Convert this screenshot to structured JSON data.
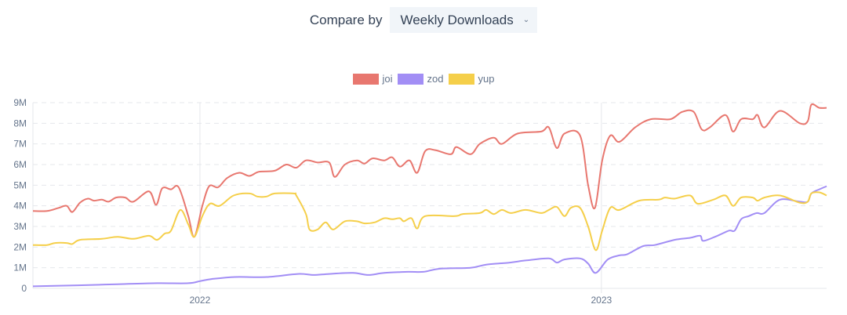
{
  "header": {
    "compare_label": "Compare by",
    "select_value": "Weekly Downloads",
    "chevron_icon": "chevron-down-icon"
  },
  "chart_data": {
    "type": "line",
    "title": "",
    "xlabel": "",
    "ylabel": "",
    "xlim": [
      2021.584,
      2023.561
    ],
    "ylim": [
      0,
      9
    ],
    "y_unit": "millions of weekly downloads",
    "y_ticks": [
      0,
      1,
      2,
      3,
      4,
      5,
      6,
      7,
      8,
      9
    ],
    "y_tick_labels": [
      "0",
      "1M",
      "2M",
      "3M",
      "4M",
      "5M",
      "6M",
      "7M",
      "8M",
      "9M"
    ],
    "x_ticks": [
      2022,
      2023
    ],
    "x_tick_labels": [
      "2022",
      "2023"
    ],
    "grid": true,
    "legend_position": "top-center",
    "series": [
      {
        "name": "joi",
        "color": "#e8776f",
        "points": [
          [
            2021.584,
            3.75
          ],
          [
            2021.619,
            3.75
          ],
          [
            2021.648,
            3.9
          ],
          [
            2021.668,
            4.0
          ],
          [
            2021.682,
            3.7
          ],
          [
            2021.701,
            4.15
          ],
          [
            2021.721,
            4.35
          ],
          [
            2021.736,
            4.25
          ],
          [
            2021.756,
            4.3
          ],
          [
            2021.772,
            4.2
          ],
          [
            2021.791,
            4.4
          ],
          [
            2021.814,
            4.4
          ],
          [
            2021.834,
            4.2
          ],
          [
            2021.873,
            4.7
          ],
          [
            2021.891,
            4.05
          ],
          [
            2021.906,
            4.85
          ],
          [
            2021.928,
            4.8
          ],
          [
            2021.947,
            4.9
          ],
          [
            2021.971,
            3.5
          ],
          [
            2021.986,
            2.5
          ],
          [
            2022.006,
            4.0
          ],
          [
            2022.023,
            4.95
          ],
          [
            2022.045,
            4.9
          ],
          [
            2022.068,
            5.35
          ],
          [
            2022.098,
            5.6
          ],
          [
            2022.123,
            5.45
          ],
          [
            2022.147,
            5.65
          ],
          [
            2022.186,
            5.7
          ],
          [
            2022.215,
            6.0
          ],
          [
            2022.24,
            5.85
          ],
          [
            2022.264,
            6.2
          ],
          [
            2022.293,
            6.1
          ],
          [
            2022.322,
            6.1
          ],
          [
            2022.336,
            5.4
          ],
          [
            2022.361,
            6.0
          ],
          [
            2022.391,
            6.2
          ],
          [
            2022.41,
            6.05
          ],
          [
            2022.43,
            6.3
          ],
          [
            2022.459,
            6.2
          ],
          [
            2022.479,
            6.35
          ],
          [
            2022.498,
            5.9
          ],
          [
            2022.522,
            6.2
          ],
          [
            2022.541,
            5.6
          ],
          [
            2022.561,
            6.65
          ],
          [
            2022.586,
            6.7
          ],
          [
            2022.625,
            6.5
          ],
          [
            2022.639,
            6.85
          ],
          [
            2022.674,
            6.5
          ],
          [
            2022.697,
            7.0
          ],
          [
            2022.732,
            7.3
          ],
          [
            2022.752,
            7.0
          ],
          [
            2022.791,
            7.5
          ],
          [
            2022.85,
            7.6
          ],
          [
            2022.869,
            7.8
          ],
          [
            2022.889,
            6.8
          ],
          [
            2022.908,
            7.5
          ],
          [
            2022.947,
            7.4
          ],
          [
            2022.967,
            5.0
          ],
          [
            2022.984,
            3.9
          ],
          [
            2023.002,
            6.2
          ],
          [
            2023.022,
            7.4
          ],
          [
            2023.045,
            7.1
          ],
          [
            2023.084,
            7.8
          ],
          [
            2023.123,
            8.2
          ],
          [
            2023.172,
            8.2
          ],
          [
            2023.201,
            8.55
          ],
          [
            2023.23,
            8.55
          ],
          [
            2023.25,
            7.7
          ],
          [
            2023.27,
            7.8
          ],
          [
            2023.309,
            8.4
          ],
          [
            2023.328,
            7.6
          ],
          [
            2023.348,
            8.2
          ],
          [
            2023.377,
            8.2
          ],
          [
            2023.389,
            8.4
          ],
          [
            2023.406,
            7.8
          ],
          [
            2023.445,
            8.6
          ],
          [
            2023.494,
            8.0
          ],
          [
            2023.514,
            8.1
          ],
          [
            2023.523,
            8.9
          ],
          [
            2023.543,
            8.75
          ],
          [
            2023.561,
            8.75
          ]
        ]
      },
      {
        "name": "zod",
        "color": "#a28ef5",
        "points": [
          [
            2021.584,
            0.1
          ],
          [
            2021.697,
            0.15
          ],
          [
            2021.795,
            0.2
          ],
          [
            2021.893,
            0.25
          ],
          [
            2021.971,
            0.25
          ],
          [
            2022.0,
            0.35
          ],
          [
            2022.029,
            0.45
          ],
          [
            2022.088,
            0.55
          ],
          [
            2022.166,
            0.55
          ],
          [
            2022.244,
            0.7
          ],
          [
            2022.283,
            0.65
          ],
          [
            2022.322,
            0.7
          ],
          [
            2022.381,
            0.75
          ],
          [
            2022.42,
            0.65
          ],
          [
            2022.459,
            0.75
          ],
          [
            2022.518,
            0.8
          ],
          [
            2022.557,
            0.8
          ],
          [
            2022.596,
            0.95
          ],
          [
            2022.674,
            1.0
          ],
          [
            2022.713,
            1.15
          ],
          [
            2022.772,
            1.25
          ],
          [
            2022.811,
            1.35
          ],
          [
            2022.869,
            1.45
          ],
          [
            2022.889,
            1.25
          ],
          [
            2022.908,
            1.4
          ],
          [
            2022.947,
            1.45
          ],
          [
            2022.967,
            1.2
          ],
          [
            2022.986,
            0.75
          ],
          [
            2023.016,
            1.4
          ],
          [
            2023.045,
            1.6
          ],
          [
            2023.064,
            1.65
          ],
          [
            2023.104,
            2.05
          ],
          [
            2023.133,
            2.1
          ],
          [
            2023.182,
            2.35
          ],
          [
            2023.221,
            2.45
          ],
          [
            2023.246,
            2.55
          ],
          [
            2023.254,
            2.3
          ],
          [
            2023.289,
            2.55
          ],
          [
            2023.318,
            2.8
          ],
          [
            2023.332,
            2.8
          ],
          [
            2023.348,
            3.35
          ],
          [
            2023.367,
            3.5
          ],
          [
            2023.387,
            3.65
          ],
          [
            2023.406,
            3.65
          ],
          [
            2023.445,
            4.3
          ],
          [
            2023.494,
            4.2
          ],
          [
            2023.514,
            4.2
          ],
          [
            2023.523,
            4.6
          ],
          [
            2023.543,
            4.8
          ],
          [
            2023.561,
            4.95
          ]
        ]
      },
      {
        "name": "yup",
        "color": "#f5cf4a",
        "points": [
          [
            2021.584,
            2.1
          ],
          [
            2021.619,
            2.1
          ],
          [
            2021.639,
            2.2
          ],
          [
            2021.668,
            2.2
          ],
          [
            2021.682,
            2.15
          ],
          [
            2021.701,
            2.35
          ],
          [
            2021.756,
            2.4
          ],
          [
            2021.795,
            2.5
          ],
          [
            2021.834,
            2.4
          ],
          [
            2021.873,
            2.55
          ],
          [
            2021.893,
            2.35
          ],
          [
            2021.912,
            2.65
          ],
          [
            2021.928,
            2.8
          ],
          [
            2021.951,
            3.8
          ],
          [
            2021.971,
            3.1
          ],
          [
            2021.986,
            2.5
          ],
          [
            2022.006,
            3.5
          ],
          [
            2022.025,
            4.1
          ],
          [
            2022.049,
            4.0
          ],
          [
            2022.084,
            4.5
          ],
          [
            2022.123,
            4.6
          ],
          [
            2022.143,
            4.45
          ],
          [
            2022.166,
            4.45
          ],
          [
            2022.186,
            4.6
          ],
          [
            2022.234,
            4.6
          ],
          [
            2022.24,
            4.5
          ],
          [
            2022.264,
            3.6
          ],
          [
            2022.273,
            2.85
          ],
          [
            2022.293,
            2.85
          ],
          [
            2022.313,
            3.2
          ],
          [
            2022.332,
            2.85
          ],
          [
            2022.361,
            3.25
          ],
          [
            2022.391,
            3.25
          ],
          [
            2022.41,
            3.15
          ],
          [
            2022.436,
            3.2
          ],
          [
            2022.459,
            3.4
          ],
          [
            2022.479,
            3.35
          ],
          [
            2022.498,
            3.4
          ],
          [
            2022.508,
            3.25
          ],
          [
            2022.527,
            3.4
          ],
          [
            2022.541,
            2.9
          ],
          [
            2022.561,
            3.5
          ],
          [
            2022.635,
            3.5
          ],
          [
            2022.654,
            3.6
          ],
          [
            2022.697,
            3.65
          ],
          [
            2022.713,
            3.8
          ],
          [
            2022.732,
            3.6
          ],
          [
            2022.752,
            3.8
          ],
          [
            2022.775,
            3.65
          ],
          [
            2022.811,
            3.8
          ],
          [
            2022.85,
            3.65
          ],
          [
            2022.869,
            3.8
          ],
          [
            2022.889,
            3.95
          ],
          [
            2022.908,
            3.5
          ],
          [
            2022.924,
            3.9
          ],
          [
            2022.947,
            3.9
          ],
          [
            2022.967,
            3.0
          ],
          [
            2022.986,
            1.85
          ],
          [
            2023.002,
            2.8
          ],
          [
            2023.022,
            3.9
          ],
          [
            2023.045,
            3.8
          ],
          [
            2023.094,
            4.25
          ],
          [
            2023.143,
            4.3
          ],
          [
            2023.158,
            4.4
          ],
          [
            2023.182,
            4.35
          ],
          [
            2023.221,
            4.5
          ],
          [
            2023.24,
            4.1
          ],
          [
            2023.279,
            4.3
          ],
          [
            2023.309,
            4.5
          ],
          [
            2023.328,
            4.0
          ],
          [
            2023.348,
            4.4
          ],
          [
            2023.377,
            4.4
          ],
          [
            2023.389,
            4.25
          ],
          [
            2023.406,
            4.4
          ],
          [
            2023.445,
            4.5
          ],
          [
            2023.494,
            4.15
          ],
          [
            2023.514,
            4.2
          ],
          [
            2023.523,
            4.6
          ],
          [
            2023.543,
            4.65
          ],
          [
            2023.561,
            4.5
          ]
        ]
      }
    ]
  }
}
